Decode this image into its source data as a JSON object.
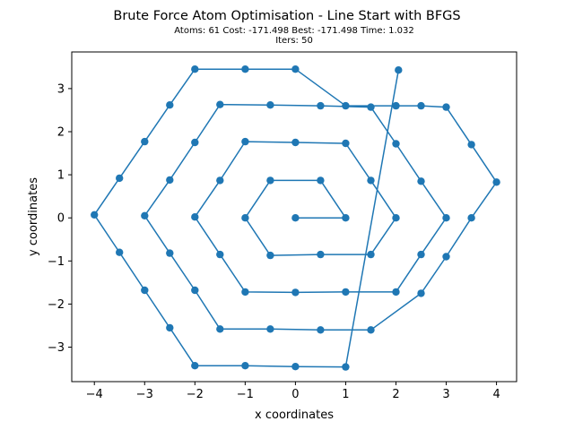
{
  "chart_data": {
    "type": "line",
    "title": "Brute Force Atom Optimisation - Line Start with BFGS",
    "subtitle_lines": [
      "Atoms: 61 Cost: -171.498 Best: -171.498 Time: 1.032",
      "Iters: 50"
    ],
    "xlabel": "x coordinates",
    "ylabel": "y coordinates",
    "xlim": [
      -4.45,
      4.4
    ],
    "ylim": [
      -3.8,
      3.85
    ],
    "xticks": [
      -4,
      -3,
      -2,
      -1,
      0,
      1,
      2,
      3,
      4
    ],
    "yticks": [
      -3,
      -2,
      -1,
      0,
      1,
      2,
      3
    ],
    "grid": false,
    "color": "#1f77b4",
    "series": [
      {
        "x": [
          0,
          1,
          0.5,
          -0.5,
          -1,
          -0.5,
          0.5,
          1.5,
          2,
          1.5,
          1,
          0,
          -1,
          -1.5,
          -2,
          -1.5,
          -1,
          0,
          1,
          2,
          2.5,
          3,
          2.5,
          2,
          1.5,
          0.5,
          -0.5,
          -1.5,
          -2,
          -2.5,
          -3,
          -2.5,
          -2,
          -1.5,
          -0.5,
          0.5,
          1.5,
          2.5,
          3,
          3.5,
          4,
          3.5,
          3,
          2.5,
          2,
          1,
          0,
          -1,
          -2,
          -2.5,
          -3,
          -3.5,
          -4,
          -3.5,
          -3,
          -2.5,
          -2,
          -1,
          0,
          1,
          2.05
        ],
        "y": [
          0,
          0,
          0.87,
          0.87,
          0,
          -0.87,
          -0.85,
          -0.85,
          0,
          0.87,
          1.73,
          1.75,
          1.77,
          0.87,
          0.02,
          -0.85,
          -1.72,
          -1.73,
          -1.72,
          -1.72,
          -0.85,
          0,
          0.85,
          1.72,
          2.57,
          2.6,
          2.62,
          2.63,
          1.75,
          0.88,
          0.05,
          -0.82,
          -1.68,
          -2.58,
          -2.58,
          -2.6,
          -2.6,
          -1.75,
          -0.9,
          0,
          0.83,
          1.7,
          2.57,
          2.6,
          2.6,
          2.6,
          3.45,
          3.45,
          3.45,
          2.62,
          1.77,
          0.92,
          0.07,
          -0.8,
          -1.68,
          -2.55,
          -3.43,
          -3.43,
          -3.45,
          -3.46,
          3.43
        ]
      }
    ]
  }
}
